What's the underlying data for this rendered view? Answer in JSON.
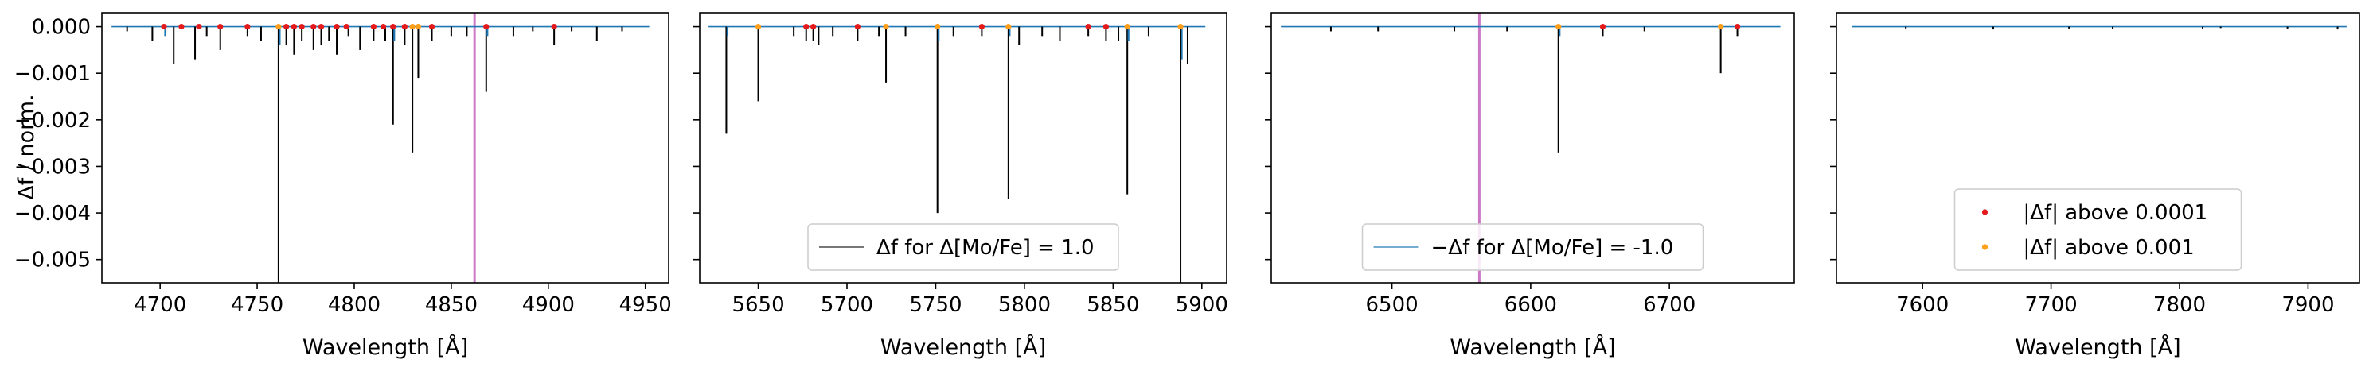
{
  "figure": {
    "shared_ylabel": "Δf / norm.",
    "colors": {
      "delta_line": "#000000",
      "neg_delta_line": "#1f77b4",
      "highlight_line": "#cc79c8",
      "above_0_0001": "#e41a1c",
      "above_0_001": "#ff9f1c"
    }
  },
  "chart_data": [
    {
      "type": "line",
      "xlabel": "Wavelength [Å]",
      "ylabel": "Δf / norm.",
      "xlim": [
        4670,
        4962
      ],
      "ylim": [
        -0.0055,
        0.0003
      ],
      "xticks": [
        4700,
        4750,
        4800,
        4850,
        4900,
        4950
      ],
      "yticks": [
        0.0,
        -0.001,
        -0.002,
        -0.003,
        -0.004,
        -0.005
      ],
      "ytick_labels": [
        "0.000",
        "−0.001",
        "−0.002",
        "−0.003",
        "−0.004",
        "−0.005"
      ],
      "continuum_range": [
        4675,
        4952
      ],
      "highlight_wavelength": 4862,
      "series": [
        {
          "kind": "delta",
          "x": [
            4683,
            4696,
            4707,
            4718,
            4724,
            4731,
            4745,
            4752,
            4761,
            4765,
            4769,
            4773,
            4779,
            4783,
            4787,
            4791,
            4797,
            4803,
            4810,
            4816,
            4820,
            4826,
            4830,
            4833,
            4840,
            4850,
            4858,
            4868,
            4882,
            4892,
            4903,
            4912,
            4925,
            4938
          ],
          "y": [
            -0.0001,
            -0.0003,
            -0.0008,
            -0.0007,
            -0.0002,
            -0.0005,
            -0.0002,
            -0.0003,
            -0.0056,
            -0.0004,
            -0.0006,
            -0.0003,
            -0.0005,
            -0.0004,
            -0.0003,
            -0.0006,
            -0.0002,
            -0.0005,
            -0.0003,
            -0.0003,
            -0.0021,
            -0.0004,
            -0.0027,
            -0.0011,
            -0.0003,
            -0.0002,
            -0.0002,
            -0.0014,
            -0.0002,
            -0.0001,
            -0.0004,
            -0.0001,
            -0.0003,
            -0.0001
          ]
        },
        {
          "kind": "neg_delta",
          "x": [
            4702,
            4761,
            4820,
            4868
          ],
          "y": [
            -0.0002,
            -0.0004,
            -0.0003,
            -0.0002
          ]
        },
        {
          "kind": "above_0_0001",
          "x": [
            4702,
            4711,
            4720,
            4731,
            4745,
            4765,
            4769,
            4773,
            4779,
            4783,
            4791,
            4796,
            4810,
            4815,
            4820,
            4826,
            4840,
            4868,
            4903
          ],
          "y": [
            0,
            0,
            0,
            0,
            0,
            0,
            0,
            0,
            0,
            0,
            0,
            0,
            0,
            0,
            0,
            0,
            0,
            0,
            0
          ]
        },
        {
          "kind": "above_0_001",
          "x": [
            4761,
            4830,
            4833
          ],
          "y": [
            0,
            0,
            0
          ]
        }
      ]
    },
    {
      "type": "line",
      "xlabel": "Wavelength [Å]",
      "xlim": [
        5617,
        5914
      ],
      "ylim": [
        -0.0055,
        0.0003
      ],
      "xticks": [
        5650,
        5700,
        5750,
        5800,
        5850,
        5900
      ],
      "continuum_range": [
        5622,
        5902
      ],
      "series": [
        {
          "kind": "delta",
          "label": "Δf for Δ[Mo/Fe] = 1.0",
          "x": [
            5632,
            5650,
            5670,
            5677,
            5681,
            5684,
            5692,
            5706,
            5718,
            5722,
            5733,
            5751,
            5760,
            5776,
            5791,
            5797,
            5810,
            5820,
            5836,
            5846,
            5853,
            5858,
            5870,
            5888,
            5892
          ],
          "y": [
            -0.0023,
            -0.0016,
            -0.0002,
            -0.0003,
            -0.0003,
            -0.0004,
            -0.0002,
            -0.0003,
            -0.0002,
            -0.0012,
            -0.0002,
            -0.004,
            -0.0002,
            -0.0002,
            -0.0037,
            -0.0004,
            -0.0002,
            -0.0003,
            -0.0002,
            -0.0003,
            -0.0003,
            -0.0036,
            -0.0002,
            -0.0056,
            -0.0008
          ]
        },
        {
          "kind": "neg_delta",
          "x": [
            5632,
            5751,
            5791,
            5858,
            5888
          ],
          "y": [
            -0.0002,
            -0.0003,
            -0.0002,
            -0.0003,
            -0.0007
          ]
        },
        {
          "kind": "above_0_0001",
          "x": [
            5677,
            5681,
            5706,
            5776,
            5836,
            5846
          ],
          "y": [
            0,
            0,
            0,
            0,
            0,
            0
          ]
        },
        {
          "kind": "above_0_001",
          "x": [
            5650,
            5722,
            5751,
            5791,
            5858,
            5888
          ],
          "y": [
            0,
            0,
            0,
            0,
            0,
            0
          ]
        }
      ],
      "legend": {
        "entries": [
          "Δf for Δ[Mo/Fe] = 1.0"
        ],
        "location": "lower center"
      }
    },
    {
      "type": "line",
      "xlabel": "Wavelength [Å]",
      "xlim": [
        6413,
        6790
      ],
      "ylim": [
        -0.0055,
        0.0003
      ],
      "xticks": [
        6500,
        6600,
        6700
      ],
      "continuum_range": [
        6420,
        6780
      ],
      "highlight_wavelength": 6563,
      "series": [
        {
          "kind": "delta",
          "x": [
            6456,
            6490,
            6545,
            6583,
            6620,
            6652,
            6682,
            6737,
            6749
          ],
          "y": [
            -0.0001,
            -0.0001,
            -0.0001,
            -0.0001,
            -0.0027,
            -0.0002,
            -0.0001,
            -0.001,
            -0.0002
          ]
        },
        {
          "kind": "neg_delta",
          "label": "−Δf for Δ[Mo/Fe] = -1.0",
          "x": [
            6620
          ],
          "y": [
            -0.0002
          ]
        },
        {
          "kind": "above_0_0001",
          "x": [
            6652,
            6749
          ],
          "y": [
            0,
            0
          ]
        },
        {
          "kind": "above_0_001",
          "x": [
            6620,
            6737
          ],
          "y": [
            0,
            0
          ]
        }
      ],
      "legend": {
        "entries": [
          "−Δf for Δ[Mo/Fe] = -1.0"
        ],
        "location": "lower center"
      }
    },
    {
      "type": "line",
      "xlabel": "Wavelength [Å]",
      "xlim": [
        7533,
        7940
      ],
      "ylim": [
        -0.0055,
        0.0003
      ],
      "xticks": [
        7600,
        7700,
        7800,
        7900
      ],
      "continuum_range": [
        7545,
        7930
      ],
      "series": [
        {
          "kind": "delta",
          "x": [
            7587,
            7655,
            7714,
            7748,
            7818,
            7832,
            7884,
            7923
          ],
          "y": [
            -4e-05,
            -6e-05,
            -4e-05,
            -5e-05,
            -4e-05,
            -3e-05,
            -4e-05,
            -6e-05
          ]
        }
      ],
      "legend": {
        "entries": [
          "|Δf| above 0.0001",
          "|Δf| above 0.001"
        ],
        "location": "lower center"
      }
    }
  ]
}
